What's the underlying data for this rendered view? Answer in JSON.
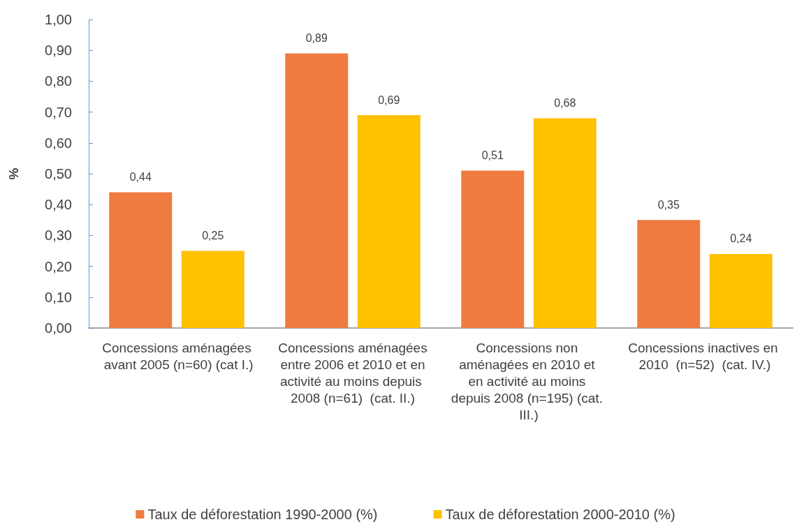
{
  "chart_data": {
    "type": "bar",
    "ylabel": "%",
    "categories": [
      "Concessions aménagées avant 2005 (n=60) (cat I.)",
      "Concessions aménagées entre 2006 et 2010 et en activité au moins depuis 2008 (n=61)  (cat. II.)",
      "Concessions non aménagées en 2010 et en activité au moins depuis 2008 (n=195) (cat. III.)",
      "Concessions inactives en 2010  (n=52)  (cat. IV.)"
    ],
    "series": [
      {
        "name": "Taux de déforestation 1990-2000 (%)",
        "color": "#f07b3f",
        "values": [
          0.44,
          0.89,
          0.51,
          0.35
        ],
        "value_labels": [
          "0,44",
          "0,89",
          "0,51",
          "0,35"
        ]
      },
      {
        "name": "Taux de déforestation 2000-2010 (%)",
        "color": "#ffc000",
        "values": [
          0.25,
          0.69,
          0.68,
          0.24
        ],
        "value_labels": [
          "0,25",
          "0,69",
          "0,68",
          "0,24"
        ]
      }
    ],
    "ylim": [
      0,
      1
    ],
    "yticks": [
      {
        "value": 0,
        "label": "0,00"
      },
      {
        "value": 0.1,
        "label": "0,10"
      },
      {
        "value": 0.2,
        "label": "0,20"
      },
      {
        "value": 0.3,
        "label": "0,30"
      },
      {
        "value": 0.4,
        "label": "0,40"
      },
      {
        "value": 0.5,
        "label": "0,50"
      },
      {
        "value": 0.6,
        "label": "0,60"
      },
      {
        "value": 0.7,
        "label": "0,70"
      },
      {
        "value": 0.8,
        "label": "0,80"
      },
      {
        "value": 0.9,
        "label": "0,90"
      },
      {
        "value": 1,
        "label": "1,00"
      }
    ],
    "grid": false,
    "legend": "bottom"
  }
}
